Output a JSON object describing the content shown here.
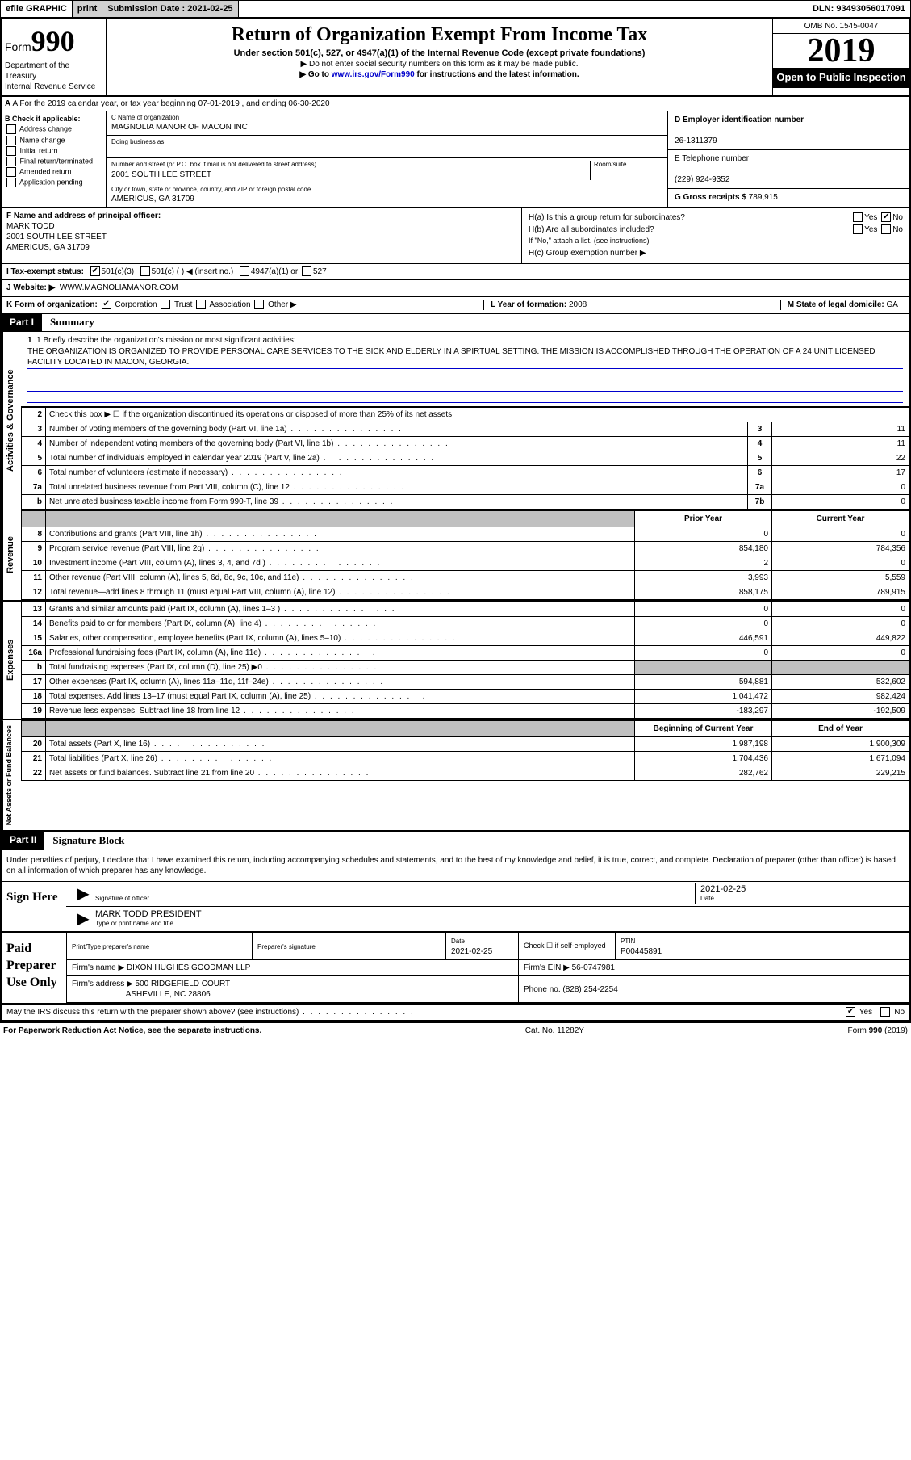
{
  "topbar": {
    "efile": "efile GRAPHIC",
    "print": "print",
    "sub_label": "Submission Date :",
    "sub_date": "2021-02-25",
    "dln_label": "DLN:",
    "dln": "93493056017091"
  },
  "header": {
    "form_word": "Form",
    "form_num": "990",
    "dept": "Department of the Treasury\nInternal Revenue Service",
    "title": "Return of Organization Exempt From Income Tax",
    "subtitle": "Under section 501(c), 527, or 4947(a)(1) of the Internal Revenue Code (except private foundations)",
    "note1": "▶ Do not enter social security numbers on this form as it may be made public.",
    "note2_a": "▶ Go to ",
    "note2_link": "www.irs.gov/Form990",
    "note2_b": " for instructions and the latest information.",
    "omb": "OMB No. 1545-0047",
    "year": "2019",
    "open": "Open to Public Inspection"
  },
  "rowA": "A For the 2019 calendar year, or tax year beginning 07-01-2019   , and ending 06-30-2020",
  "B": {
    "label": "B Check if applicable:",
    "items": [
      "Address change",
      "Name change",
      "Initial return",
      "Final return/terminated",
      "Amended return",
      "Application pending"
    ]
  },
  "C": {
    "name_lbl": "C Name of organization",
    "name": "MAGNOLIA MANOR OF MACON INC",
    "dba_lbl": "Doing business as",
    "dba": "",
    "addr_lbl": "Number and street (or P.O. box if mail is not delivered to street address)",
    "room_lbl": "Room/suite",
    "addr": "2001 SOUTH LEE STREET",
    "city_lbl": "City or town, state or province, country, and ZIP or foreign postal code",
    "city": "AMERICUS, GA  31709"
  },
  "D": {
    "lbl": "D Employer identification number",
    "val": "26-1311379"
  },
  "E": {
    "lbl": "E Telephone number",
    "val": "(229) 924-9352"
  },
  "G": {
    "lbl": "G Gross receipts $",
    "val": "789,915"
  },
  "F": {
    "lbl": "F  Name and address of principal officer:",
    "name": "MARK TODD",
    "addr1": "2001 SOUTH LEE STREET",
    "addr2": "AMERICUS, GA  31709"
  },
  "H": {
    "a": "H(a)  Is this a group return for subordinates?",
    "a_no": true,
    "b": "H(b)  Are all subordinates included?",
    "b_note": "If \"No,\" attach a list. (see instructions)",
    "c": "H(c)  Group exemption number ▶"
  },
  "I": {
    "lbl": "I  Tax-exempt status:",
    "opt1": "501(c)(3)",
    "opt2": "501(c) (  ) ◀ (insert no.)",
    "opt3": "4947(a)(1) or",
    "opt4": "527"
  },
  "J": {
    "lbl": "J   Website: ▶",
    "val": "WWW.MAGNOLIAMANOR.COM"
  },
  "K": {
    "lbl": "K Form of organization:",
    "opts": [
      "Corporation",
      "Trust",
      "Association",
      "Other ▶"
    ]
  },
  "L": {
    "lbl": "L Year of formation:",
    "val": "2008"
  },
  "M": {
    "lbl": "M State of legal domicile:",
    "val": "GA"
  },
  "part1": {
    "tag": "Part I",
    "title": "Summary"
  },
  "mission": {
    "q": "1  Briefly describe the organization's mission or most significant activities:",
    "text": "THE ORGANIZATION IS ORGANIZED TO PROVIDE PERSONAL CARE SERVICES TO THE SICK AND ELDERLY IN A SPIRTUAL SETTING. THE MISSION IS ACCOMPLISHED THROUGH THE OPERATION OF A 24 UNIT LICENSED FACILITY LOCATED IN MACON, GEORGIA."
  },
  "side_labels": [
    "Activities & Governance",
    "Revenue",
    "Expenses",
    "Net Assets or Fund Balances"
  ],
  "gov_rows": [
    {
      "n": "2",
      "lbl": "Check this box ▶ ☐  if the organization discontinued its operations or disposed of more than 25% of its net assets.",
      "box": "",
      "val": ""
    },
    {
      "n": "3",
      "lbl": "Number of voting members of the governing body (Part VI, line 1a)",
      "box": "3",
      "val": "11"
    },
    {
      "n": "4",
      "lbl": "Number of independent voting members of the governing body (Part VI, line 1b)",
      "box": "4",
      "val": "11"
    },
    {
      "n": "5",
      "lbl": "Total number of individuals employed in calendar year 2019 (Part V, line 2a)",
      "box": "5",
      "val": "22"
    },
    {
      "n": "6",
      "lbl": "Total number of volunteers (estimate if necessary)",
      "box": "6",
      "val": "17"
    },
    {
      "n": "7a",
      "lbl": "Total unrelated business revenue from Part VIII, column (C), line 12",
      "box": "7a",
      "val": "0"
    },
    {
      "n": "b",
      "lbl": "Net unrelated business taxable income from Form 990-T, line 39",
      "box": "7b",
      "val": "0"
    }
  ],
  "py_cy_hdr": {
    "py": "Prior Year",
    "cy": "Current Year"
  },
  "rev_rows": [
    {
      "n": "8",
      "lbl": "Contributions and grants (Part VIII, line 1h)",
      "py": "0",
      "cy": "0"
    },
    {
      "n": "9",
      "lbl": "Program service revenue (Part VIII, line 2g)",
      "py": "854,180",
      "cy": "784,356"
    },
    {
      "n": "10",
      "lbl": "Investment income (Part VIII, column (A), lines 3, 4, and 7d )",
      "py": "2",
      "cy": "0"
    },
    {
      "n": "11",
      "lbl": "Other revenue (Part VIII, column (A), lines 5, 6d, 8c, 9c, 10c, and 11e)",
      "py": "3,993",
      "cy": "5,559"
    },
    {
      "n": "12",
      "lbl": "Total revenue—add lines 8 through 11 (must equal Part VIII, column (A), line 12)",
      "py": "858,175",
      "cy": "789,915"
    }
  ],
  "exp_rows": [
    {
      "n": "13",
      "lbl": "Grants and similar amounts paid (Part IX, column (A), lines 1–3 )",
      "py": "0",
      "cy": "0"
    },
    {
      "n": "14",
      "lbl": "Benefits paid to or for members (Part IX, column (A), line 4)",
      "py": "0",
      "cy": "0"
    },
    {
      "n": "15",
      "lbl": "Salaries, other compensation, employee benefits (Part IX, column (A), lines 5–10)",
      "py": "446,591",
      "cy": "449,822"
    },
    {
      "n": "16a",
      "lbl": "Professional fundraising fees (Part IX, column (A), line 11e)",
      "py": "0",
      "cy": "0"
    },
    {
      "n": "b",
      "lbl": "Total fundraising expenses (Part IX, column (D), line 25) ▶0",
      "py": "",
      "cy": "",
      "grey": true
    },
    {
      "n": "17",
      "lbl": "Other expenses (Part IX, column (A), lines 11a–11d, 11f–24e)",
      "py": "594,881",
      "cy": "532,602"
    },
    {
      "n": "18",
      "lbl": "Total expenses. Add lines 13–17 (must equal Part IX, column (A), line 25)",
      "py": "1,041,472",
      "cy": "982,424"
    },
    {
      "n": "19",
      "lbl": "Revenue less expenses. Subtract line 18 from line 12",
      "py": "-183,297",
      "cy": "-192,509"
    }
  ],
  "na_hdr": {
    "py": "Beginning of Current Year",
    "cy": "End of Year"
  },
  "na_rows": [
    {
      "n": "20",
      "lbl": "Total assets (Part X, line 16)",
      "py": "1,987,198",
      "cy": "1,900,309"
    },
    {
      "n": "21",
      "lbl": "Total liabilities (Part X, line 26)",
      "py": "1,704,436",
      "cy": "1,671,094"
    },
    {
      "n": "22",
      "lbl": "Net assets or fund balances. Subtract line 21 from line 20",
      "py": "282,762",
      "cy": "229,215"
    }
  ],
  "part2": {
    "tag": "Part II",
    "title": "Signature Block"
  },
  "sig": {
    "jurat": "Under penalties of perjury, I declare that I have examined this return, including accompanying schedules and statements, and to the best of my knowledge and belief, it is true, correct, and complete. Declaration of preparer (other than officer) is based on all information of which preparer has any knowledge.",
    "here": "Sign Here",
    "sig_lbl": "Signature of officer",
    "date": "2021-02-25",
    "date_lbl": "Date",
    "name": "MARK TODD  PRESIDENT",
    "name_lbl": "Type or print name and title"
  },
  "prep": {
    "left": "Paid Preparer Use Only",
    "h1": "Print/Type preparer's name",
    "h2": "Preparer's signature",
    "h3_lbl": "Date",
    "h3": "2021-02-25",
    "h4": "Check ☐ if self-employed",
    "h5_lbl": "PTIN",
    "h5": "P00445891",
    "firm_lbl": "Firm's name    ▶",
    "firm": "DIXON HUGHES GOODMAN LLP",
    "ein_lbl": "Firm's EIN ▶",
    "ein": "56-0747981",
    "addr_lbl": "Firm's address ▶",
    "addr1": "500 RIDGEFIELD COURT",
    "addr2": "ASHEVILLE, NC  28806",
    "phone_lbl": "Phone no.",
    "phone": "(828) 254-2254"
  },
  "discuss": {
    "q": "May the IRS discuss this return with the preparer shown above? (see instructions)",
    "yes": true
  },
  "footer": {
    "left": "For Paperwork Reduction Act Notice, see the separate instructions.",
    "mid": "Cat. No. 11282Y",
    "right": "Form 990 (2019)"
  },
  "colors": {
    "link": "#0000cc",
    "grey": "#c0c0c0",
    "black": "#000000"
  }
}
